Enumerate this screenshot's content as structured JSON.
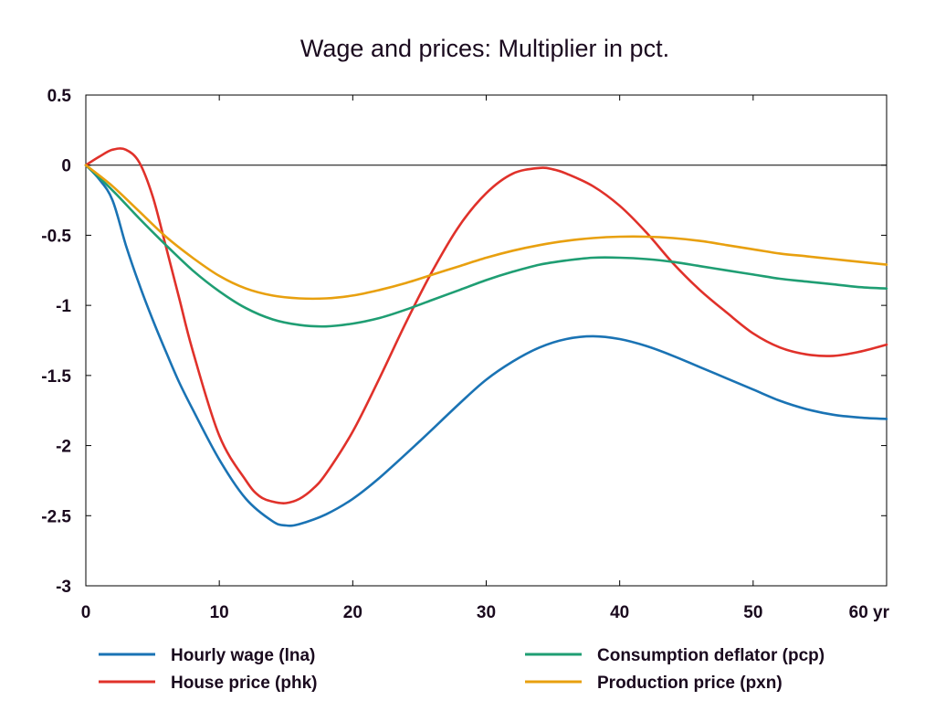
{
  "chart_data": {
    "type": "line",
    "title": "Wage and prices: Multiplier in pct.",
    "xlabel": "",
    "ylabel": "",
    "x_unit": "yr",
    "xlim": [
      0,
      60
    ],
    "ylim": [
      -3,
      0.5
    ],
    "x_ticks": [
      0,
      10,
      20,
      30,
      40,
      50,
      60
    ],
    "y_ticks": [
      0.5,
      0,
      -0.5,
      -1,
      -1.5,
      -2,
      -2.5,
      -3
    ],
    "x_tick_labels": [
      "0",
      "10",
      "20",
      "30",
      "40",
      "50",
      "60 yr"
    ],
    "y_tick_labels": [
      "0.5",
      "0",
      "-0.5",
      "-1",
      "-1.5",
      "-2",
      "-2.5",
      "-3"
    ],
    "zero_line": true,
    "grid": false,
    "legend_position": "bottom",
    "series": [
      {
        "name": "Hourly wage (lna)",
        "color": "#1a73b4",
        "x": [
          0,
          1,
          2,
          3,
          4,
          5,
          6,
          7,
          8,
          10,
          12,
          14,
          15,
          16,
          18,
          20,
          22,
          25,
          28,
          30,
          32,
          34,
          36,
          38,
          40,
          42,
          44,
          46,
          48,
          50,
          52,
          54,
          56,
          58,
          60
        ],
        "y": [
          0,
          -0.1,
          -0.25,
          -0.57,
          -0.85,
          -1.1,
          -1.33,
          -1.55,
          -1.74,
          -2.1,
          -2.38,
          -2.54,
          -2.57,
          -2.56,
          -2.49,
          -2.38,
          -2.23,
          -1.97,
          -1.7,
          -1.53,
          -1.4,
          -1.3,
          -1.24,
          -1.22,
          -1.24,
          -1.29,
          -1.36,
          -1.44,
          -1.52,
          -1.6,
          -1.68,
          -1.74,
          -1.78,
          -1.8,
          -1.81
        ]
      },
      {
        "name": "House price (phk)",
        "color": "#e0312a",
        "x": [
          0,
          1,
          2,
          3,
          4,
          5,
          6,
          7,
          8,
          10,
          12,
          13,
          14,
          15,
          16,
          17,
          18,
          20,
          22,
          24,
          26,
          28,
          30,
          32,
          34,
          35,
          36,
          38,
          40,
          42,
          44,
          46,
          48,
          50,
          52,
          54,
          56,
          58,
          60
        ],
        "y": [
          0,
          0.06,
          0.11,
          0.11,
          0.02,
          -0.22,
          -0.58,
          -0.95,
          -1.32,
          -1.93,
          -2.25,
          -2.36,
          -2.4,
          -2.41,
          -2.38,
          -2.31,
          -2.2,
          -1.9,
          -1.52,
          -1.12,
          -0.75,
          -0.43,
          -0.2,
          -0.06,
          -0.02,
          -0.03,
          -0.06,
          -0.15,
          -0.29,
          -0.48,
          -0.7,
          -0.89,
          -1.05,
          -1.2,
          -1.3,
          -1.35,
          -1.36,
          -1.33,
          -1.28
        ]
      },
      {
        "name": "Consumption deflator (pcp)",
        "color": "#1f9e73",
        "x": [
          0,
          2,
          4,
          6,
          8,
          10,
          12,
          14,
          16,
          18,
          20,
          22,
          24,
          26,
          28,
          30,
          32,
          34,
          36,
          38,
          40,
          42,
          44,
          46,
          48,
          50,
          52,
          54,
          56,
          58,
          60
        ],
        "y": [
          0,
          -0.18,
          -0.38,
          -0.57,
          -0.75,
          -0.9,
          -1.02,
          -1.1,
          -1.14,
          -1.15,
          -1.13,
          -1.09,
          -1.03,
          -0.96,
          -0.89,
          -0.82,
          -0.76,
          -0.71,
          -0.68,
          -0.66,
          -0.66,
          -0.67,
          -0.69,
          -0.72,
          -0.75,
          -0.78,
          -0.81,
          -0.83,
          -0.85,
          -0.87,
          -0.88
        ]
      },
      {
        "name": "Production price (pxn)",
        "color": "#e8a00f",
        "x": [
          0,
          2,
          4,
          6,
          8,
          10,
          12,
          14,
          16,
          18,
          20,
          22,
          24,
          26,
          28,
          30,
          32,
          34,
          36,
          38,
          40,
          42,
          44,
          46,
          48,
          50,
          52,
          54,
          56,
          58,
          60
        ],
        "y": [
          0,
          -0.15,
          -0.33,
          -0.51,
          -0.66,
          -0.79,
          -0.88,
          -0.93,
          -0.95,
          -0.95,
          -0.93,
          -0.89,
          -0.84,
          -0.78,
          -0.72,
          -0.66,
          -0.61,
          -0.57,
          -0.54,
          -0.52,
          -0.51,
          -0.51,
          -0.52,
          -0.54,
          -0.57,
          -0.6,
          -0.63,
          -0.65,
          -0.67,
          -0.69,
          -0.71
        ]
      }
    ]
  }
}
